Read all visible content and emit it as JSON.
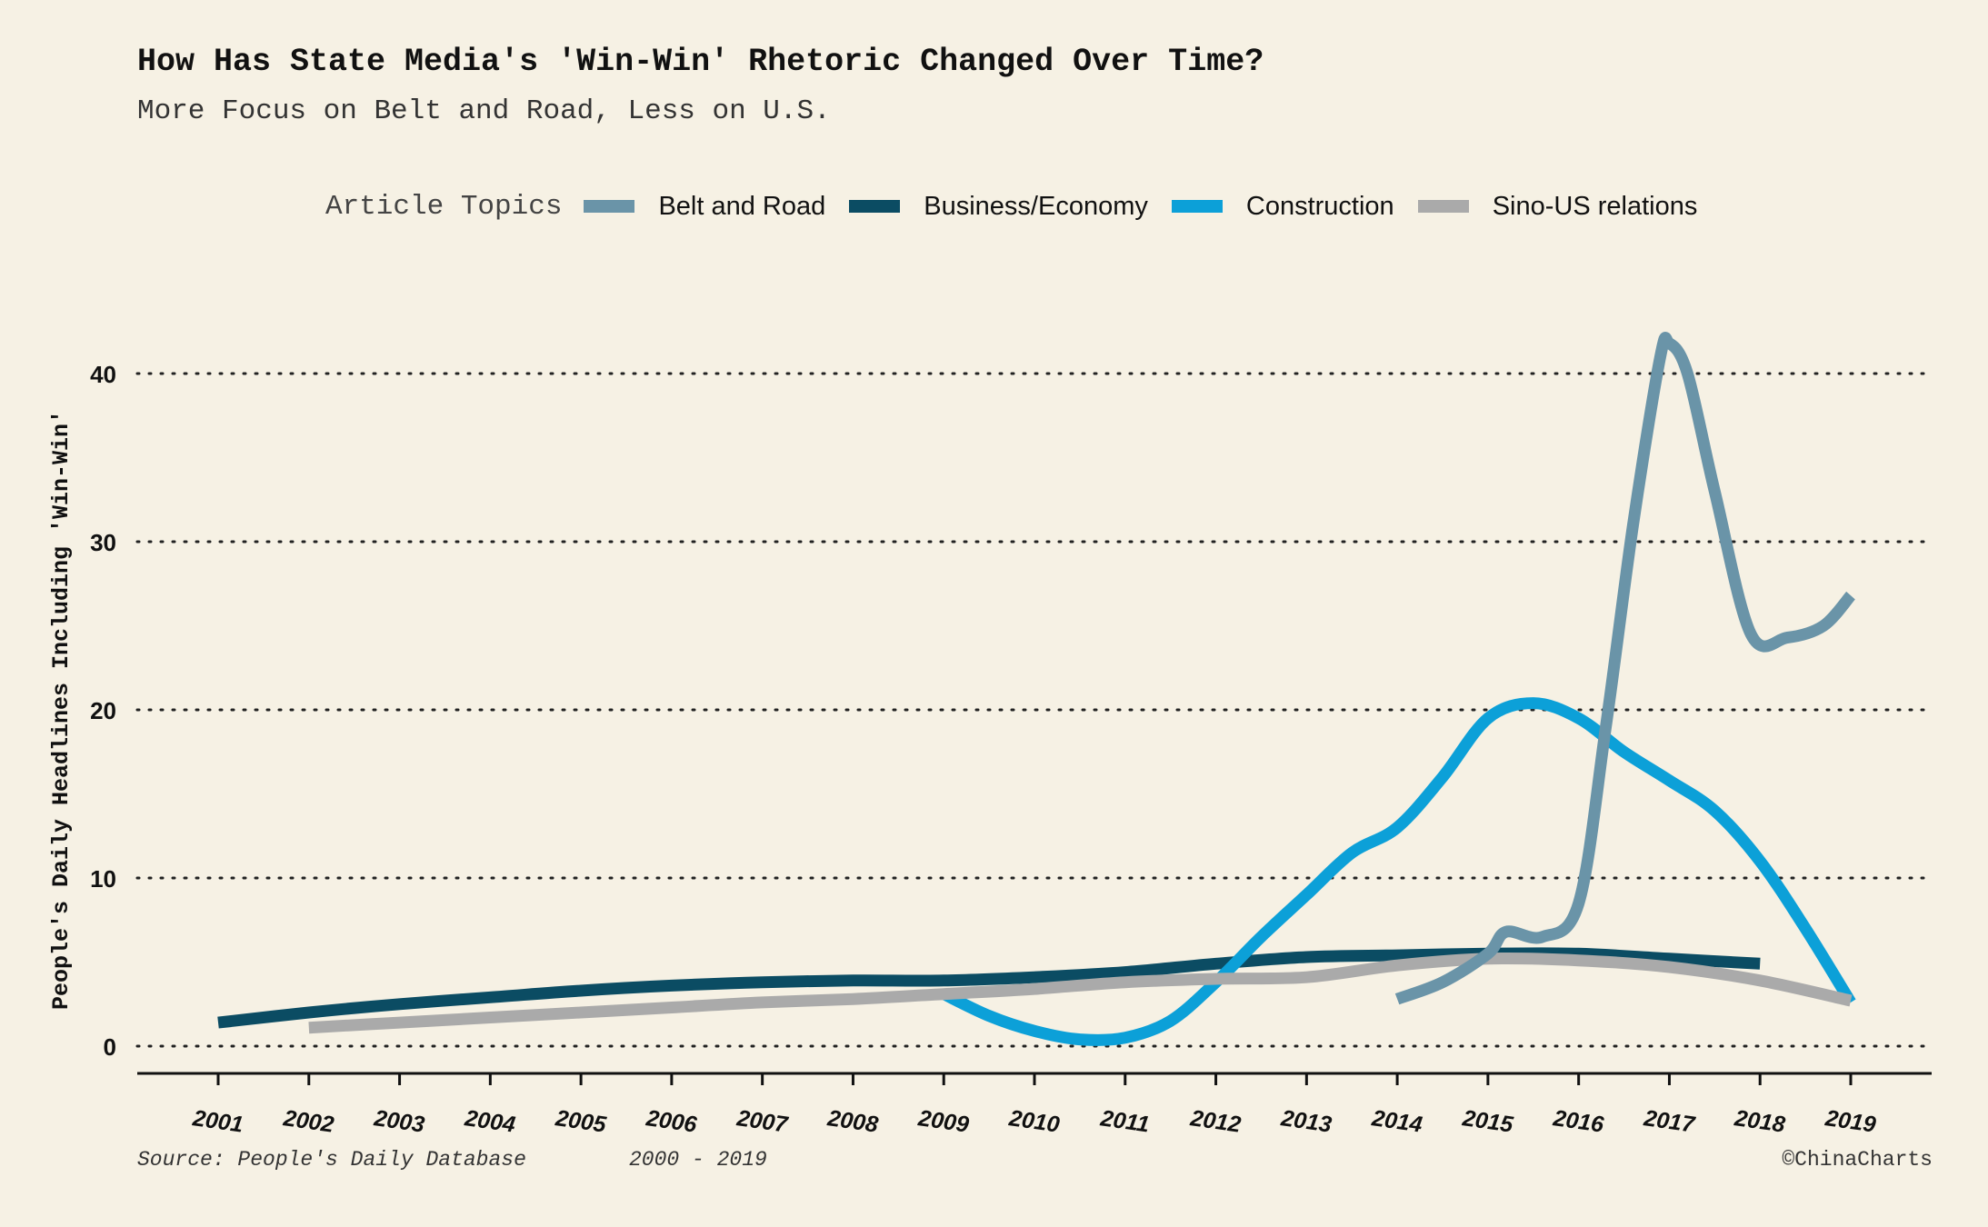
{
  "header": {
    "title": "How Has State Media's 'Win-Win' Rhetoric Changed Over Time?",
    "subtitle": "More Focus on Belt and Road, Less on U.S."
  },
  "legend": {
    "title": "Article Topics",
    "items": [
      {
        "label": "Belt and Road",
        "color": "#6a94a8"
      },
      {
        "label": "Business/Economy",
        "color": "#0b4c63"
      },
      {
        "label": "Construction",
        "color": "#0ca0d8"
      },
      {
        "label": "Sino-US relations",
        "color": "#aaaaaa"
      }
    ]
  },
  "footer": {
    "source": "Source: People's Daily Database",
    "range": "2000 - 2019",
    "credit": "©ChinaCharts"
  },
  "chart_data": {
    "type": "line",
    "title": "How Has State Media's 'Win-Win' Rhetoric Changed Over Time?",
    "subtitle": "More Focus on Belt and Road, Less on U.S.",
    "xlabel": "",
    "ylabel": "People's Daily Headlines Including 'Win-Win'",
    "xlim": [
      2001,
      2019
    ],
    "ylim": [
      0,
      40
    ],
    "x_ticks": [
      "2001",
      "2002",
      "2003",
      "2004",
      "2005",
      "2006",
      "2007",
      "2008",
      "2009",
      "2010",
      "2011",
      "2012",
      "2013",
      "2014",
      "2015",
      "2016",
      "2017",
      "2018",
      "2019"
    ],
    "y_ticks": [
      "0",
      "10",
      "20",
      "30",
      "40"
    ],
    "grid": "horizontal dotted",
    "legend_position": "top",
    "series": [
      {
        "name": "Belt and Road",
        "color": "#6a94a8",
        "x": [
          2014,
          2014.5,
          2015,
          2015.2,
          2015.6,
          2016,
          2016.3,
          2016.6,
          2016.9,
          2017,
          2017.2,
          2017.5,
          2017.9,
          2018.3,
          2018.7,
          2019
        ],
        "y": [
          2.8,
          3.8,
          5.5,
          6.8,
          6.5,
          8.5,
          19,
          31,
          41,
          41.8,
          40,
          33,
          24.5,
          24.3,
          25,
          26.8
        ]
      },
      {
        "name": "Business/Economy",
        "color": "#0b4c63",
        "x": [
          2001,
          2002,
          2003,
          2004,
          2005,
          2006,
          2007,
          2008,
          2009,
          2010,
          2011,
          2012,
          2013,
          2014,
          2015,
          2016,
          2017,
          2018
        ],
        "y": [
          1.4,
          2.0,
          2.5,
          2.9,
          3.3,
          3.6,
          3.8,
          3.9,
          3.9,
          4.1,
          4.4,
          4.9,
          5.3,
          5.4,
          5.5,
          5.5,
          5.2,
          4.9
        ]
      },
      {
        "name": "Construction",
        "color": "#0ca0d8",
        "x": [
          2009,
          2009.5,
          2010,
          2010.5,
          2011,
          2011.5,
          2012,
          2012.5,
          2013,
          2013.5,
          2014,
          2014.5,
          2015,
          2015.5,
          2016,
          2016.5,
          2017,
          2017.5,
          2018,
          2018.5,
          2019
        ],
        "y": [
          3.1,
          1.8,
          0.9,
          0.4,
          0.5,
          1.5,
          3.8,
          6.5,
          9.0,
          11.5,
          13.0,
          16.0,
          19.5,
          20.4,
          19.5,
          17.5,
          15.8,
          14.0,
          11.0,
          7.0,
          2.6
        ]
      },
      {
        "name": "Sino-US relations",
        "color": "#aaaaaa",
        "x": [
          2002,
          2003,
          2004,
          2005,
          2006,
          2007,
          2008,
          2009,
          2010,
          2011,
          2012,
          2013,
          2014,
          2015,
          2016,
          2017,
          2018,
          2019
        ],
        "y": [
          1.1,
          1.4,
          1.7,
          2.0,
          2.3,
          2.6,
          2.8,
          3.1,
          3.4,
          3.8,
          4.0,
          4.1,
          4.8,
          5.2,
          5.1,
          4.7,
          3.9,
          2.7
        ]
      }
    ]
  }
}
